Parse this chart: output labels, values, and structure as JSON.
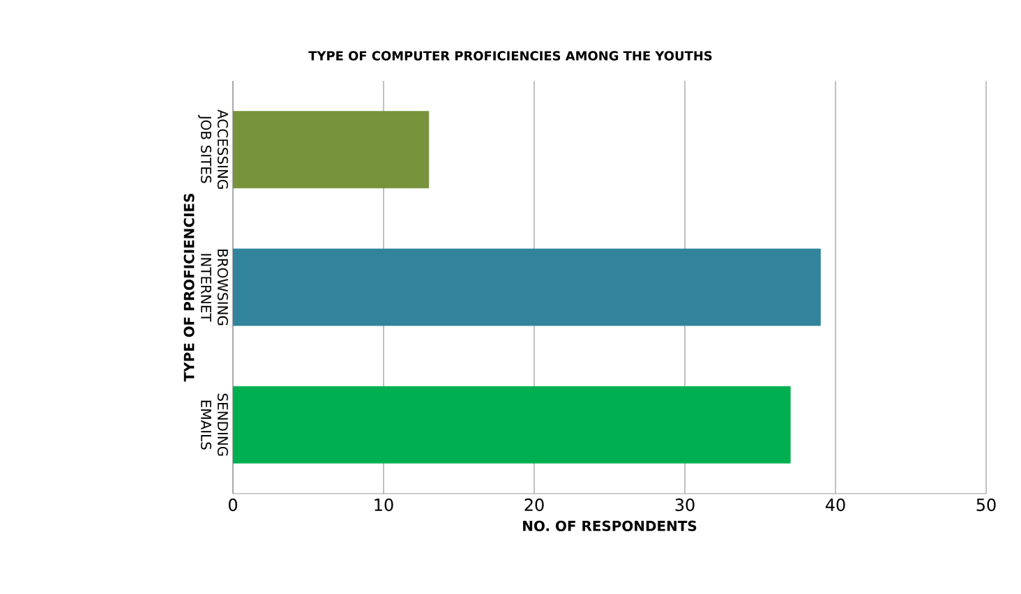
{
  "chart_data": {
    "type": "bar",
    "orientation": "horizontal",
    "title": "TYPE OF COMPUTER PROFICIENCIES AMONG THE YOUTHS",
    "xlabel": "NO. OF RESPONDENTS",
    "ylabel": "TYPE OF PROFICIENCIES",
    "categories": [
      "ACCESSING JOB SITES",
      "BROWSING INTERNET",
      "SENDING EMAILS"
    ],
    "values": [
      13,
      39,
      37
    ],
    "colors": [
      "#77933c",
      "#31849b",
      "#00b050"
    ],
    "xlim": [
      0,
      50
    ],
    "xticks": [
      0,
      10,
      20,
      30,
      40,
      50
    ],
    "grid": "x"
  }
}
